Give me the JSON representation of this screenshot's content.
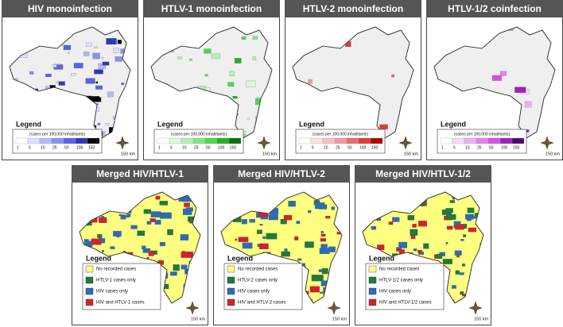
{
  "panels": [
    {
      "title": "HIV monoinfection",
      "legend_title": "Legend",
      "scale_caption": "(cases per 100,000 inhabitants)",
      "scale_ticks": [
        1,
        5,
        10,
        25,
        50,
        100,
        150
      ],
      "scale_bar": "150 km"
    },
    {
      "title": "HTLV-1 monoinfection",
      "legend_title": "Legend",
      "scale_caption": "(cases per 100,000 inhabitants)",
      "scale_ticks": [
        1,
        5,
        10,
        25,
        50,
        100,
        150
      ],
      "scale_bar": "150 km"
    },
    {
      "title": "HTLV-2 monoinfection",
      "legend_title": "Legend",
      "scale_caption": "(cases per 100,000 inhabitants)",
      "scale_ticks": [
        1,
        5,
        10,
        25,
        50,
        100,
        150
      ],
      "scale_bar": "150 km"
    },
    {
      "title": "HTLV-1/2 coinfection",
      "legend_title": "Legend",
      "scale_caption": "(cases per 100,000 inhabitants)",
      "scale_ticks": [
        1,
        5,
        10,
        25,
        50,
        100,
        150
      ],
      "scale_bar": "150 km"
    }
  ],
  "merged": [
    {
      "title": "Merged HIV/HTLV-1",
      "legend_title": "Legend",
      "items": [
        "No recorded cases",
        "HTLV-1 cases only",
        "HIV cases only",
        "HIV and HTLV-1 cases"
      ],
      "scale_bar": "150 km"
    },
    {
      "title": "Merged HIV/HTLV-2",
      "legend_title": "Legend",
      "items": [
        "No recorded cases",
        "HTLV-2 cases only",
        "HIV cases only",
        "HIV and HTLV-2 cases"
      ],
      "scale_bar": "150 km"
    },
    {
      "title": "Merged HIV/HTLV-1/2",
      "legend_title": "Legend",
      "items": [
        "No recorded cases",
        "HTLV-1/2 cases only",
        "HIV cases only",
        "HIV and HTLV-1/2 cases"
      ],
      "scale_bar": "150 km"
    }
  ]
}
